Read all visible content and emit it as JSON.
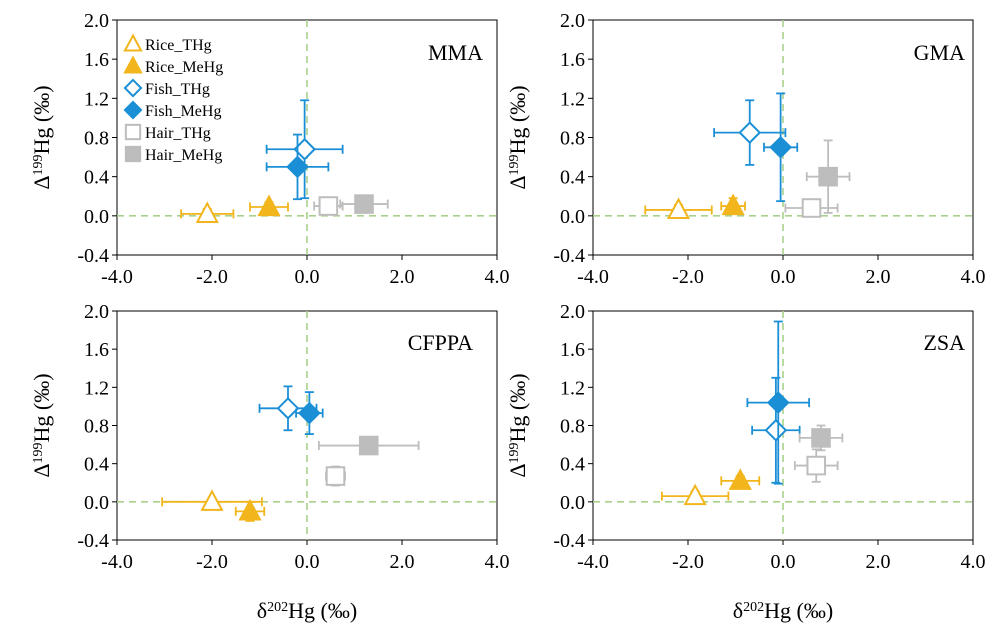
{
  "figure": {
    "x_axis_label": {
      "delta": "δ",
      "mass": "202",
      "element": "Hg (‰)"
    },
    "y_axis_label": {
      "delta": "Δ",
      "mass": "199",
      "element": "Hg (‰)"
    }
  },
  "colors": {
    "rice": "#F2B51B",
    "fish": "#1B8FD6",
    "hair": "#BDBDBD",
    "zero_line": "#A9D18E"
  },
  "legend": [
    {
      "label": "Rice_THg",
      "series": "Rice_THg"
    },
    {
      "label": "Rice_MeHg",
      "series": "Rice_MeHg"
    },
    {
      "label": "Fish_THg",
      "series": "Fish_THg"
    },
    {
      "label": "Fish_MeHg",
      "series": "Fish_MeHg"
    },
    {
      "label": "Hair_THg",
      "series": "Hair_THg"
    },
    {
      "label": "Hair_MeHg",
      "series": "Hair_MeHg"
    }
  ],
  "chart_data": [
    {
      "type": "scatter",
      "title": "MMA",
      "xlim": [
        -4.0,
        4.0
      ],
      "ylim": [
        -0.4,
        2.0
      ],
      "x_ticks": [
        "-4.0",
        "-2.0",
        "0.0",
        "2.0",
        "4.0"
      ],
      "y_ticks": [
        "2.0",
        "1.6",
        "1.2",
        "0.8",
        "0.4",
        "0.0",
        "-0.4"
      ],
      "grid": false,
      "legend_position": "top-left",
      "series": [
        {
          "name": "Rice_THg",
          "x": -2.1,
          "y": 0.02,
          "xerr": 0.55,
          "yerr": 0.05
        },
        {
          "name": "Rice_MeHg",
          "x": -0.8,
          "y": 0.09,
          "xerr": 0.4,
          "yerr": 0.05
        },
        {
          "name": "Fish_THg",
          "x": -0.05,
          "y": 0.68,
          "xerr": 0.8,
          "yerr": 0.5
        },
        {
          "name": "Fish_MeHg",
          "x": -0.2,
          "y": 0.5,
          "xerr": 0.65,
          "yerr": 0.33
        },
        {
          "name": "Hair_THg",
          "x": 0.45,
          "y": 0.1,
          "xerr": 0.3,
          "yerr": 0.05
        },
        {
          "name": "Hair_MeHg",
          "x": 1.2,
          "y": 0.12,
          "xerr": 0.5,
          "yerr": 0.05
        }
      ]
    },
    {
      "type": "scatter",
      "title": "GMA",
      "xlim": [
        -4.0,
        4.0
      ],
      "ylim": [
        -0.4,
        2.0
      ],
      "x_ticks": [
        "-4.0",
        "-2.0",
        "0.0",
        "2.0",
        "4.0"
      ],
      "y_ticks": [
        "2.0",
        "1.6",
        "1.2",
        "0.8",
        "0.4",
        "0.0",
        "-0.4"
      ],
      "grid": false,
      "series": [
        {
          "name": "Rice_THg",
          "x": -2.2,
          "y": 0.06,
          "xerr": 0.7,
          "yerr": 0.05
        },
        {
          "name": "Rice_MeHg",
          "x": -1.05,
          "y": 0.1,
          "xerr": 0.25,
          "yerr": 0.08
        },
        {
          "name": "Fish_THg",
          "x": -0.7,
          "y": 0.85,
          "xerr": 0.75,
          "yerr": 0.33
        },
        {
          "name": "Fish_MeHg",
          "x": -0.05,
          "y": 0.7,
          "xerr": 0.35,
          "yerr": 0.55
        },
        {
          "name": "Hair_THg",
          "x": 0.6,
          "y": 0.08,
          "xerr": 0.55,
          "yerr": 0.05
        },
        {
          "name": "Hair_MeHg",
          "x": 0.95,
          "y": 0.4,
          "xerr": 0.45,
          "yerr": 0.37
        }
      ]
    },
    {
      "type": "scatter",
      "title": "CFPPA",
      "xlim": [
        -4.0,
        4.0
      ],
      "ylim": [
        -0.4,
        2.0
      ],
      "x_ticks": [
        "-4.0",
        "-2.0",
        "0.0",
        "2.0",
        "4.0"
      ],
      "y_ticks": [
        "2.0",
        "1.6",
        "1.2",
        "0.8",
        "0.4",
        "0.0",
        "-0.4"
      ],
      "grid": false,
      "series": [
        {
          "name": "Rice_THg",
          "x": -2.0,
          "y": 0.0,
          "xerr": 1.05,
          "yerr": 0.02
        },
        {
          "name": "Rice_MeHg",
          "x": -1.2,
          "y": -0.1,
          "xerr": 0.3,
          "yerr": 0.1
        },
        {
          "name": "Fish_THg",
          "x": -0.4,
          "y": 0.98,
          "xerr": 0.6,
          "yerr": 0.23
        },
        {
          "name": "Fish_MeHg",
          "x": 0.05,
          "y": 0.93,
          "xerr": 0.28,
          "yerr": 0.22
        },
        {
          "name": "Hair_THg",
          "x": 0.6,
          "y": 0.27,
          "xerr": 0.2,
          "yerr": 0.1
        },
        {
          "name": "Hair_MeHg",
          "x": 1.3,
          "y": 0.59,
          "xerr": 1.05,
          "yerr": 0.05
        }
      ]
    },
    {
      "type": "scatter",
      "title": "ZSA",
      "xlim": [
        -4.0,
        4.0
      ],
      "ylim": [
        -0.4,
        2.0
      ],
      "x_ticks": [
        "-4.0",
        "-2.0",
        "0.0",
        "2.0",
        "4.0"
      ],
      "y_ticks": [
        "2.0",
        "1.6",
        "1.2",
        "0.8",
        "0.4",
        "0.0",
        "-0.4"
      ],
      "grid": false,
      "series": [
        {
          "name": "Rice_THg",
          "x": -1.85,
          "y": 0.06,
          "xerr": 0.7,
          "yerr": 0.05
        },
        {
          "name": "Rice_MeHg",
          "x": -0.9,
          "y": 0.22,
          "xerr": 0.4,
          "yerr": 0.05
        },
        {
          "name": "Fish_THg",
          "x": -0.15,
          "y": 0.75,
          "xerr": 0.5,
          "yerr": 0.55
        },
        {
          "name": "Fish_MeHg",
          "x": -0.1,
          "y": 1.04,
          "xerr": 0.65,
          "yerr": 0.85
        },
        {
          "name": "Hair_THg",
          "x": 0.7,
          "y": 0.38,
          "xerr": 0.45,
          "yerr": 0.17
        },
        {
          "name": "Hair_MeHg",
          "x": 0.8,
          "y": 0.67,
          "xerr": 0.45,
          "yerr": 0.13
        }
      ]
    }
  ]
}
